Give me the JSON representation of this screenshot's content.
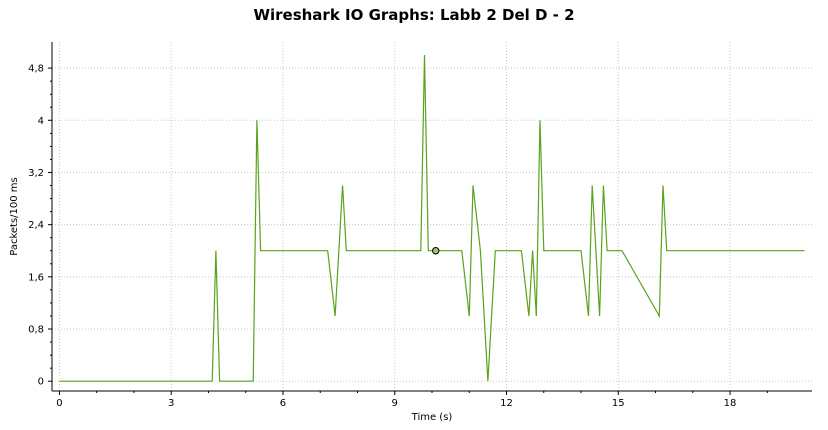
{
  "chart_data": {
    "type": "line",
    "title": "Wireshark IO Graphs: Labb 2 Del D - 2",
    "xlabel": "Time (s)",
    "ylabel": "Packets/100 ms",
    "xlim": [
      -0.2,
      20.2
    ],
    "ylim": [
      -0.15,
      5.2
    ],
    "xticks": [
      0,
      3,
      6,
      9,
      12,
      15,
      18
    ],
    "xtick_labels": [
      "0",
      "3",
      "6",
      "9",
      "12",
      "15",
      "18"
    ],
    "yticks": [
      0,
      0.8,
      1.6,
      2.4,
      3.2,
      4,
      4.8
    ],
    "ytick_labels": [
      "0",
      "0,8",
      "1,6",
      "2,4",
      "3,2",
      "4",
      "4,8"
    ],
    "grid": true,
    "line_color": "#5aa31c",
    "series": [
      {
        "x": [
          0,
          4.1,
          4.2,
          4.3,
          5.2,
          5.3,
          5.4,
          7.2,
          7.4,
          7.6,
          7.7,
          9.7,
          9.8,
          9.9,
          10.1,
          10.2,
          10.8,
          11.0,
          11.1,
          11.3,
          11.5,
          11.7,
          12.4,
          12.6,
          12.7,
          12.8,
          12.9,
          13.0,
          13.1,
          14.0,
          14.2,
          14.3,
          14.5,
          14.6,
          14.7,
          15.1,
          16.1,
          16.2,
          16.3,
          20.0
        ],
        "y": [
          0,
          0,
          2,
          0,
          0,
          4,
          2,
          2,
          1,
          3,
          2,
          2,
          5,
          2,
          2,
          2,
          2,
          1,
          3,
          2,
          0,
          2,
          2,
          1,
          2,
          1,
          4,
          2,
          2,
          2,
          1,
          3,
          1,
          3,
          2,
          2,
          1,
          3,
          2,
          2
        ]
      }
    ],
    "marker": {
      "x": 10.1,
      "y": 2
    }
  }
}
